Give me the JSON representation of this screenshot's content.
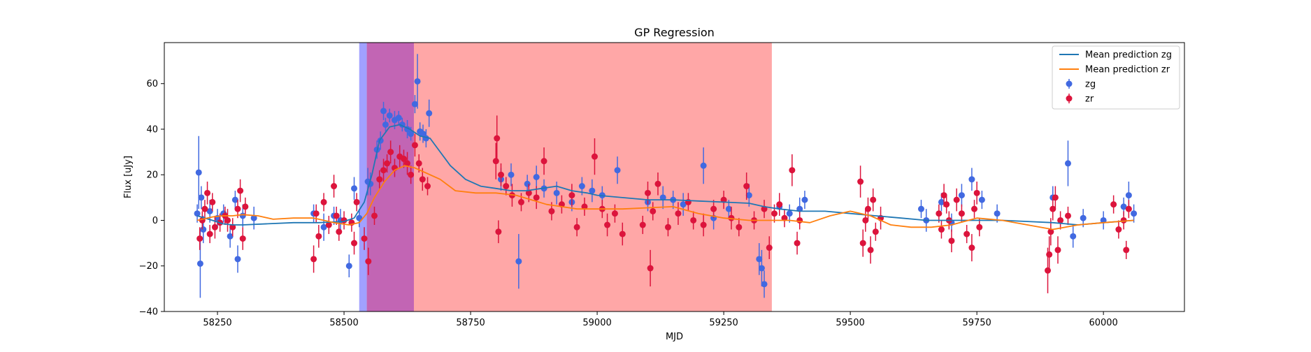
{
  "chart_data": {
    "type": "scatter",
    "title": "GP Regression",
    "xlabel": "MJD",
    "ylabel": "Flux [uJy]",
    "xlim": [
      58145,
      60160
    ],
    "ylim": [
      -40,
      78
    ],
    "xticks": [
      58250,
      58500,
      58750,
      59000,
      59250,
      59500,
      59750,
      60000
    ],
    "yticks": [
      -40,
      -20,
      0,
      20,
      40,
      60
    ],
    "grid": false,
    "legend_position": "top-right",
    "legend": [
      {
        "label": "Mean prediction zg",
        "kind": "line",
        "color": "#1f77b4"
      },
      {
        "label": "Mean prediction zr",
        "kind": "line",
        "color": "#ff7f0e"
      },
      {
        "label": "zg",
        "kind": "errorbar",
        "color": "#4169e1"
      },
      {
        "label": "zr",
        "kind": "errorbar",
        "color": "#dc143c"
      }
    ],
    "shaded_regions": [
      {
        "x0": 58530,
        "x1": 58545,
        "color": "#4444ff",
        "opacity": 0.5
      },
      {
        "x0": 58545,
        "x1": 59345,
        "color": "#ff4444",
        "opacity": 0.47
      },
      {
        "x0": 58545,
        "x1": 58638,
        "color": "#8f2fbf",
        "opacity": 0.55
      }
    ],
    "series": [
      {
        "name": "Mean prediction zg",
        "kind": "line",
        "color": "#1f77b4",
        "x": [
          58210,
          58240,
          58260,
          58280,
          58300,
          58350,
          58400,
          58450,
          58500,
          58520,
          58540,
          58555,
          58570,
          58590,
          58610,
          58630,
          58650,
          58670,
          58690,
          58710,
          58740,
          58770,
          58800,
          58830,
          58860,
          58890,
          58920,
          58950,
          58980,
          59000,
          59050,
          59100,
          59150,
          59200,
          59250,
          59300,
          59330,
          59360,
          59400,
          59450,
          59500,
          59550,
          59600,
          59650,
          59700,
          59750,
          59800,
          59850,
          59900,
          59950,
          60000,
          60060
        ],
        "y": [
          2,
          0,
          -1.5,
          -2,
          -2,
          -1.5,
          -1,
          -1,
          -0.5,
          1,
          8,
          20,
          35,
          41,
          42,
          40,
          37,
          36,
          30,
          24,
          18,
          15,
          14,
          13,
          13,
          14,
          15,
          13,
          12,
          11,
          10,
          9,
          9,
          8.5,
          8,
          7.5,
          6,
          5,
          4,
          4,
          3,
          2,
          1,
          0,
          0,
          0,
          0,
          -0.5,
          -1,
          -2,
          -1,
          0
        ]
      },
      {
        "name": "Mean prediction zr",
        "kind": "line",
        "color": "#ff7f0e",
        "x": [
          58210,
          58240,
          58260,
          58280,
          58300,
          58330,
          58360,
          58400,
          58440,
          58480,
          58510,
          58530,
          58545,
          58560,
          58580,
          58600,
          58620,
          58640,
          58660,
          58690,
          58720,
          58760,
          58800,
          58840,
          58870,
          58900,
          58930,
          58960,
          59000,
          59050,
          59100,
          59150,
          59200,
          59250,
          59300,
          59340,
          59380,
          59420,
          59460,
          59500,
          59540,
          59580,
          59620,
          59660,
          59700,
          59750,
          59800,
          59850,
          59900,
          59950,
          60000,
          60060
        ],
        "y": [
          0,
          1.5,
          2,
          2,
          2.5,
          2,
          0.5,
          1,
          1,
          -1,
          -2,
          -1,
          3,
          10,
          17,
          22,
          24,
          23,
          21,
          18,
          13,
          12,
          12,
          11,
          9,
          7,
          6,
          5,
          5,
          5,
          5.5,
          6,
          3,
          1,
          0,
          0,
          0,
          -1,
          2,
          4,
          2,
          -2,
          -3,
          -3,
          -2,
          1,
          0,
          -2,
          -4,
          -2,
          -1,
          0
        ]
      },
      {
        "name": "zg",
        "kind": "errorbar",
        "color": "#4169e1",
        "points": [
          [
            58210,
            3,
            4
          ],
          [
            58213,
            21,
            16
          ],
          [
            58216,
            -19,
            15
          ],
          [
            58218,
            10,
            5
          ],
          [
            58222,
            -4,
            6
          ],
          [
            58235,
            4,
            5
          ],
          [
            58250,
            1,
            4
          ],
          [
            58262,
            3,
            4
          ],
          [
            58275,
            -7,
            5
          ],
          [
            58285,
            9,
            4
          ],
          [
            58290,
            -17,
            6
          ],
          [
            58300,
            2,
            5
          ],
          [
            58322,
            1,
            5
          ],
          [
            58440,
            3,
            4
          ],
          [
            58460,
            -3,
            6
          ],
          [
            58480,
            2,
            4
          ],
          [
            58493,
            0,
            5
          ],
          [
            58510,
            -20,
            5
          ],
          [
            58520,
            14,
            5
          ],
          [
            58530,
            1,
            4
          ],
          [
            58547,
            17,
            6
          ],
          [
            58552,
            16,
            5
          ],
          [
            58565,
            31,
            4
          ],
          [
            58572,
            35,
            4
          ],
          [
            58578,
            48,
            4
          ],
          [
            58582,
            42,
            3
          ],
          [
            58590,
            46,
            3
          ],
          [
            58600,
            44,
            4
          ],
          [
            58608,
            45,
            3
          ],
          [
            58615,
            42,
            3
          ],
          [
            58625,
            40,
            4
          ],
          [
            58632,
            38,
            3
          ],
          [
            58640,
            51,
            4
          ],
          [
            58645,
            61,
            12
          ],
          [
            58650,
            39,
            4
          ],
          [
            58656,
            38,
            4
          ],
          [
            58662,
            36,
            4
          ],
          [
            58668,
            47,
            6
          ],
          [
            58810,
            18,
            5
          ],
          [
            58830,
            20,
            5
          ],
          [
            58845,
            -18,
            12
          ],
          [
            58862,
            16,
            4
          ],
          [
            58880,
            19,
            5
          ],
          [
            58895,
            14,
            4
          ],
          [
            58920,
            12,
            5
          ],
          [
            58950,
            8,
            4
          ],
          [
            58970,
            15,
            4
          ],
          [
            58990,
            13,
            5
          ],
          [
            59010,
            11,
            4
          ],
          [
            59040,
            22,
            6
          ],
          [
            59100,
            8,
            4
          ],
          [
            59130,
            10,
            5
          ],
          [
            59150,
            9,
            4
          ],
          [
            59170,
            7,
            5
          ],
          [
            59210,
            24,
            8
          ],
          [
            59230,
            1,
            5
          ],
          [
            59260,
            5,
            4
          ],
          [
            59300,
            11,
            5
          ],
          [
            59320,
            -17,
            7
          ],
          [
            59325,
            -21,
            8
          ],
          [
            59330,
            -28,
            6
          ],
          [
            59360,
            6,
            4
          ],
          [
            59380,
            3,
            4
          ],
          [
            59400,
            5,
            5
          ],
          [
            59410,
            9,
            4
          ],
          [
            59640,
            5,
            4
          ],
          [
            59650,
            0,
            5
          ],
          [
            59680,
            8,
            4
          ],
          [
            59700,
            -1,
            4
          ],
          [
            59720,
            11,
            5
          ],
          [
            59740,
            18,
            5
          ],
          [
            59760,
            9,
            4
          ],
          [
            59790,
            3,
            4
          ],
          [
            59900,
            10,
            5
          ],
          [
            59930,
            25,
            10
          ],
          [
            59940,
            -7,
            5
          ],
          [
            59960,
            1,
            4
          ],
          [
            60000,
            0,
            4
          ],
          [
            60040,
            6,
            4
          ],
          [
            60050,
            11,
            6
          ],
          [
            60060,
            3,
            4
          ]
        ]
      },
      {
        "name": "zr",
        "kind": "errorbar",
        "color": "#dc143c",
        "points": [
          [
            58215,
            -8,
            5
          ],
          [
            58220,
            0,
            4
          ],
          [
            58225,
            5,
            4
          ],
          [
            58230,
            12,
            5
          ],
          [
            58235,
            -6,
            4
          ],
          [
            58240,
            8,
            4
          ],
          [
            58245,
            -3,
            5
          ],
          [
            58255,
            -1,
            4
          ],
          [
            58265,
            2,
            4
          ],
          [
            58270,
            0,
            5
          ],
          [
            58280,
            -3,
            4
          ],
          [
            58290,
            5,
            4
          ],
          [
            58295,
            13,
            5
          ],
          [
            58300,
            -8,
            5
          ],
          [
            58305,
            6,
            4
          ],
          [
            58440,
            -17,
            6
          ],
          [
            58445,
            3,
            4
          ],
          [
            58450,
            -7,
            5
          ],
          [
            58460,
            8,
            4
          ],
          [
            58470,
            -2,
            4
          ],
          [
            58480,
            15,
            5
          ],
          [
            58485,
            2,
            4
          ],
          [
            58490,
            -5,
            4
          ],
          [
            58500,
            0,
            4
          ],
          [
            58515,
            -1,
            4
          ],
          [
            58520,
            -10,
            5
          ],
          [
            58525,
            8,
            4
          ],
          [
            58540,
            -8,
            5
          ],
          [
            58548,
            -18,
            6
          ],
          [
            58560,
            2,
            4
          ],
          [
            58570,
            18,
            4
          ],
          [
            58578,
            22,
            5
          ],
          [
            58585,
            25,
            4
          ],
          [
            58592,
            30,
            5
          ],
          [
            58600,
            23,
            4
          ],
          [
            58610,
            28,
            5
          ],
          [
            58618,
            27,
            4
          ],
          [
            58625,
            25,
            5
          ],
          [
            58632,
            20,
            4
          ],
          [
            58640,
            33,
            5
          ],
          [
            58648,
            25,
            4
          ],
          [
            58655,
            18,
            5
          ],
          [
            58665,
            15,
            4
          ],
          [
            58800,
            26,
            8
          ],
          [
            58802,
            36,
            10
          ],
          [
            58805,
            -5,
            5
          ],
          [
            58810,
            20,
            5
          ],
          [
            58820,
            15,
            4
          ],
          [
            58832,
            11,
            5
          ],
          [
            58850,
            8,
            4
          ],
          [
            58865,
            12,
            4
          ],
          [
            58880,
            10,
            5
          ],
          [
            58895,
            26,
            6
          ],
          [
            58910,
            4,
            4
          ],
          [
            58930,
            7,
            4
          ],
          [
            58950,
            11,
            5
          ],
          [
            58960,
            -3,
            4
          ],
          [
            58975,
            6,
            4
          ],
          [
            58995,
            28,
            8
          ],
          [
            59010,
            5,
            4
          ],
          [
            59020,
            -2,
            5
          ],
          [
            59035,
            3,
            4
          ],
          [
            59050,
            -6,
            5
          ],
          [
            59090,
            -2,
            4
          ],
          [
            59100,
            12,
            5
          ],
          [
            59105,
            -21,
            8
          ],
          [
            59110,
            4,
            4
          ],
          [
            59120,
            16,
            5
          ],
          [
            59140,
            -3,
            4
          ],
          [
            59160,
            3,
            5
          ],
          [
            59180,
            8,
            4
          ],
          [
            59190,
            0,
            4
          ],
          [
            59210,
            -2,
            5
          ],
          [
            59230,
            5,
            4
          ],
          [
            59250,
            9,
            4
          ],
          [
            59265,
            1,
            5
          ],
          [
            59280,
            -3,
            4
          ],
          [
            59295,
            15,
            6
          ],
          [
            59310,
            0,
            4
          ],
          [
            59330,
            5,
            4
          ],
          [
            59340,
            -12,
            5
          ],
          [
            59350,
            3,
            4
          ],
          [
            59360,
            7,
            5
          ],
          [
            59370,
            1,
            4
          ],
          [
            59385,
            22,
            7
          ],
          [
            59395,
            -10,
            5
          ],
          [
            59400,
            0,
            4
          ],
          [
            59520,
            17,
            7
          ],
          [
            59525,
            -10,
            6
          ],
          [
            59530,
            0,
            5
          ],
          [
            59535,
            5,
            5
          ],
          [
            59540,
            -13,
            6
          ],
          [
            59545,
            9,
            5
          ],
          [
            59550,
            -5,
            4
          ],
          [
            59560,
            1,
            5
          ],
          [
            59675,
            3,
            4
          ],
          [
            59680,
            -4,
            4
          ],
          [
            59685,
            11,
            5
          ],
          [
            59690,
            7,
            4
          ],
          [
            59695,
            0,
            4
          ],
          [
            59700,
            -9,
            5
          ],
          [
            59710,
            9,
            5
          ],
          [
            59720,
            3,
            4
          ],
          [
            59730,
            -6,
            4
          ],
          [
            59740,
            -12,
            6
          ],
          [
            59745,
            5,
            4
          ],
          [
            59750,
            12,
            5
          ],
          [
            59755,
            -3,
            4
          ],
          [
            59890,
            -22,
            10
          ],
          [
            59893,
            -15,
            8
          ],
          [
            59896,
            -5,
            6
          ],
          [
            59900,
            5,
            5
          ],
          [
            59905,
            10,
            5
          ],
          [
            59910,
            -13,
            6
          ],
          [
            59915,
            0,
            4
          ],
          [
            59930,
            2,
            4
          ],
          [
            60020,
            7,
            4
          ],
          [
            60030,
            -4,
            4
          ],
          [
            60040,
            0,
            4
          ],
          [
            60045,
            -13,
            4
          ],
          [
            60050,
            5,
            4
          ]
        ]
      }
    ]
  }
}
